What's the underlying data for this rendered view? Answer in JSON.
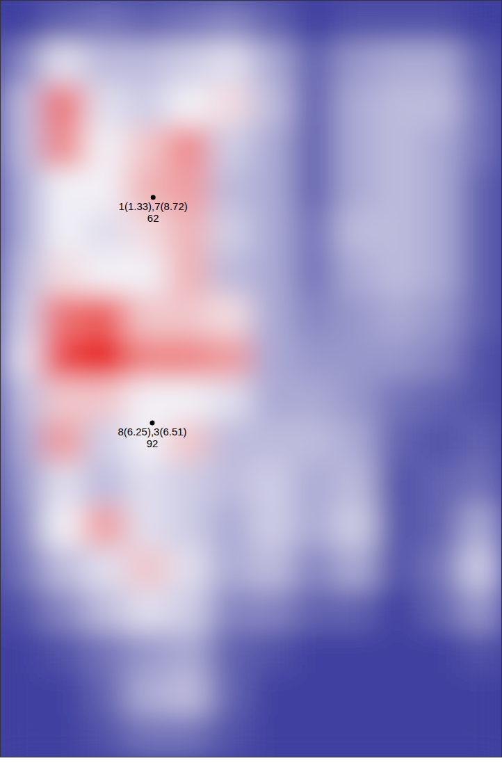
{
  "chart_data": {
    "type": "heatmap",
    "xlim": [
      0,
      12
    ],
    "ylim": [
      0,
      18
    ],
    "zlim": [
      0,
      1
    ],
    "tick_labels": false,
    "z": [
      [
        0,
        0.1,
        0.15,
        0.1,
        0.15,
        0.2,
        0.1,
        0,
        0.05,
        0.05,
        0.05,
        0
      ],
      [
        0.2,
        0.45,
        0.35,
        0.35,
        0.4,
        0.45,
        0.3,
        0.1,
        0.25,
        0.3,
        0.3,
        0.1
      ],
      [
        0.35,
        0.8,
        0.45,
        0.4,
        0.5,
        0.55,
        0.35,
        0.1,
        0.3,
        0.35,
        0.35,
        0.15
      ],
      [
        0.35,
        0.75,
        0.5,
        0.6,
        0.75,
        0.4,
        0.3,
        0.1,
        0.3,
        0.35,
        0.3,
        0.15
      ],
      [
        0.3,
        0.5,
        0.5,
        0.65,
        0.7,
        0.35,
        0.3,
        0.1,
        0.3,
        0.35,
        0.3,
        0.1
      ],
      [
        0.3,
        0.5,
        0.45,
        0.55,
        0.65,
        0.4,
        0.3,
        0.15,
        0.35,
        0.35,
        0.3,
        0.1
      ],
      [
        0.35,
        0.55,
        0.5,
        0.5,
        0.65,
        0.35,
        0.3,
        0.15,
        0.3,
        0.35,
        0.3,
        0.1
      ],
      [
        0.4,
        0.8,
        0.85,
        0.6,
        0.6,
        0.55,
        0.3,
        0.2,
        0.25,
        0.3,
        0.25,
        0.1
      ],
      [
        0.45,
        0.9,
        1.0,
        0.75,
        0.75,
        0.7,
        0.3,
        0.25,
        0.25,
        0.25,
        0.2,
        0.05
      ],
      [
        0.35,
        0.6,
        0.6,
        0.5,
        0.5,
        0.45,
        0.3,
        0.3,
        0.25,
        0.15,
        0.1,
        0.05
      ],
      [
        0.3,
        0.7,
        0.4,
        0.5,
        0.6,
        0.35,
        0.35,
        0.35,
        0.3,
        0.1,
        0.05,
        0.1
      ],
      [
        0.25,
        0.45,
        0.35,
        0.45,
        0.4,
        0.35,
        0.4,
        0.3,
        0.35,
        0.05,
        0.1,
        0.15
      ],
      [
        0.2,
        0.5,
        0.7,
        0.45,
        0.4,
        0.3,
        0.4,
        0.3,
        0.4,
        0.05,
        0.1,
        0.3
      ],
      [
        0.15,
        0.35,
        0.45,
        0.6,
        0.45,
        0.3,
        0.35,
        0.2,
        0.3,
        0.05,
        0.15,
        0.4
      ],
      [
        0.05,
        0.2,
        0.35,
        0.45,
        0.4,
        0.2,
        0.2,
        0.1,
        0.1,
        0,
        0.1,
        0.25
      ],
      [
        0,
        0.05,
        0.15,
        0.25,
        0.3,
        0.1,
        0.05,
        0,
        0,
        0,
        0,
        0.05
      ],
      [
        0,
        0,
        0.1,
        0.3,
        0.35,
        0.1,
        0,
        0,
        0,
        0,
        0,
        0
      ],
      [
        0,
        0,
        0.05,
        0.15,
        0.15,
        0.05,
        0,
        0,
        0,
        0,
        0,
        0
      ]
    ],
    "annotations": [
      {
        "x": 3.66,
        "y": 4.69,
        "label": "1(1.33),7(8.72)",
        "value": 62
      },
      {
        "x": 3.64,
        "y": 10.05,
        "label": "8(6.25),3(6.51)",
        "value": 92
      }
    ]
  }
}
